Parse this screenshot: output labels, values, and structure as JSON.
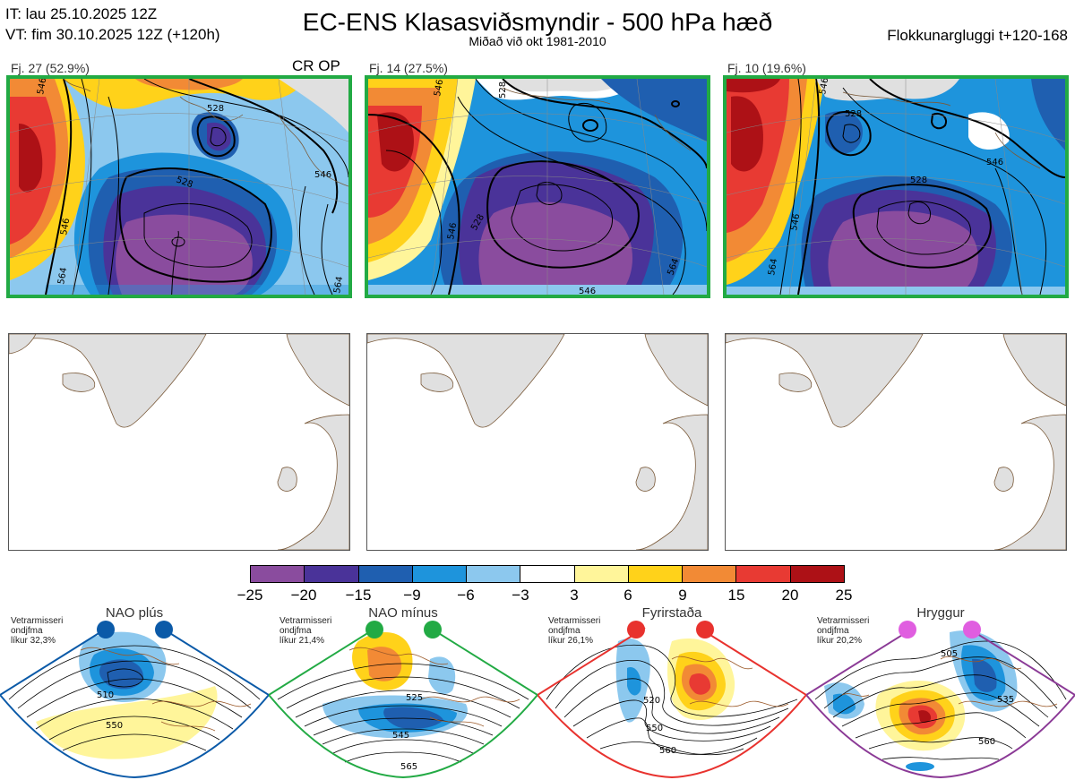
{
  "header": {
    "it_line": "IT: lau 25.10.2025 12Z",
    "vt_line": "VT: fim 30.10.2025 12Z  (+120h)",
    "title": "EC-ENS Klasasviðsmyndir - 500 hPa hæð",
    "subtitle": "Miðað við okt 1981-2010",
    "window": "Flokkunargluggi t+120-168"
  },
  "panels": [
    {
      "label": "Fj. 27 (52.9%)",
      "tag": "CR OP",
      "contours": [
        "546",
        "528",
        "546",
        "564",
        "528",
        "546",
        "564"
      ]
    },
    {
      "label": "Fj. 14 (27.5%)",
      "tag": "",
      "contours": [
        "546",
        "528",
        "528",
        "546",
        "546",
        "564"
      ]
    },
    {
      "label": "Fj. 10 (19.6%)",
      "tag": "",
      "contours": [
        "546",
        "528",
        "528",
        "546",
        "546",
        "564"
      ]
    }
  ],
  "colorbar": {
    "colors": [
      "#8a4c9e",
      "#4a3399",
      "#1f5fb0",
      "#1e94dc",
      "#8cc8ee",
      "#ffffff",
      "#fff59a",
      "#ffd21a",
      "#f28a35",
      "#e83a33",
      "#ad1116"
    ],
    "ticks": [
      "−25",
      "−20",
      "−15",
      "−9",
      "−6",
      "−3",
      "3",
      "6",
      "9",
      "15",
      "20",
      "25"
    ]
  },
  "regimes": [
    {
      "name": "NAO plús",
      "note1": "Vetrarmisseri",
      "note2": "ondjfma",
      "note3": "líkur 32,3%",
      "color": "#0b5aa8",
      "labels": [
        "510",
        "550"
      ]
    },
    {
      "name": "NAO mínus",
      "note1": "Vetrarmisseri",
      "note2": "ondjfma",
      "note3": "líkur 21,4%",
      "color": "#22aa44",
      "labels": [
        "525",
        "545",
        "565"
      ]
    },
    {
      "name": "Fyrirstaða",
      "note1": "Vetrarmisseri",
      "note2": "ondjfma",
      "note3": "líkur 26,1%",
      "color": "#e8322e",
      "labels": [
        "520",
        "550",
        "560"
      ]
    },
    {
      "name": "Hryggur",
      "note1": "Vetrarmisseri",
      "note2": "ondjfma",
      "note3": "líkur 20,2%",
      "color": "#8b3a96",
      "labels": [
        "505",
        "535",
        "560"
      ]
    }
  ]
}
